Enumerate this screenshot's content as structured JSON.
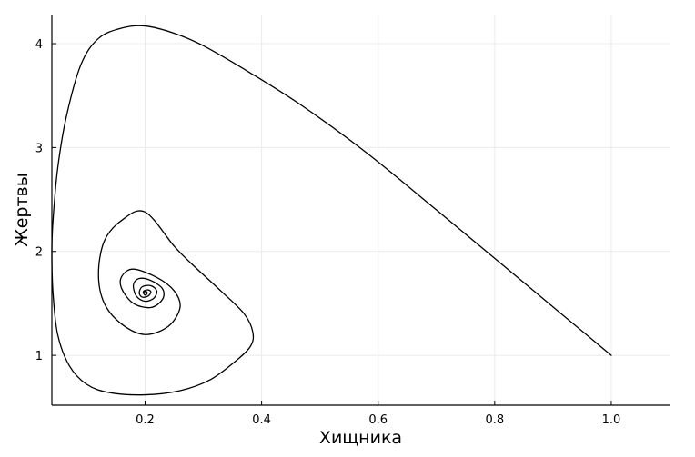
{
  "chart_data": {
    "type": "line",
    "xlabel": "Хищника",
    "ylabel": "Жертвы",
    "xlim": [
      0.04,
      1.1
    ],
    "ylim": [
      0.52,
      4.28
    ],
    "x_ticks": [
      0.2,
      0.4,
      0.6,
      0.8,
      1.0
    ],
    "x_tick_labels": [
      "0.2",
      "0.4",
      "0.6",
      "0.8",
      "1.0"
    ],
    "y_ticks": [
      1,
      2,
      3,
      4
    ],
    "y_tick_labels": [
      "1",
      "2",
      "3",
      "4"
    ],
    "grid": true,
    "legend": "none",
    "colors": {
      "line": "#000000",
      "grid": "#ebebeb",
      "axis": "#000000",
      "background": "#ffffff"
    },
    "series": [
      {
        "x": [
          1.0,
          0.85,
          0.7,
          0.58,
          0.47,
          0.38,
          0.3,
          0.25,
          0.2,
          0.16,
          0.12,
          0.09,
          0.065,
          0.05,
          0.042,
          0.04,
          0.042,
          0.05,
          0.07,
          0.1,
          0.14,
          0.2,
          0.26,
          0.31,
          0.35,
          0.38,
          0.385,
          0.37,
          0.33,
          0.28,
          0.25,
          0.2,
          0.16,
          0.13,
          0.12,
          0.13,
          0.16,
          0.2,
          0.24,
          0.26,
          0.25,
          0.22,
          0.18,
          0.16,
          0.16,
          0.18,
          0.21,
          0.23,
          0.23,
          0.21,
          0.19,
          0.18,
          0.185,
          0.2,
          0.215,
          0.22,
          0.21,
          0.195,
          0.19,
          0.195,
          0.205,
          0.21,
          0.205,
          0.198,
          0.197,
          0.2,
          0.203,
          0.203,
          0.2,
          0.199,
          0.2
        ],
        "y": [
          1.0,
          1.7,
          2.4,
          2.95,
          3.4,
          3.72,
          3.98,
          4.1,
          4.17,
          4.15,
          4.05,
          3.8,
          3.3,
          2.8,
          2.3,
          2.0,
          1.6,
          1.2,
          0.9,
          0.72,
          0.64,
          0.62,
          0.66,
          0.76,
          0.92,
          1.08,
          1.22,
          1.4,
          1.62,
          1.88,
          2.05,
          2.38,
          2.3,
          2.1,
          1.78,
          1.5,
          1.3,
          1.2,
          1.28,
          1.46,
          1.62,
          1.75,
          1.83,
          1.76,
          1.64,
          1.5,
          1.46,
          1.54,
          1.64,
          1.72,
          1.74,
          1.68,
          1.57,
          1.52,
          1.55,
          1.62,
          1.67,
          1.66,
          1.6,
          1.56,
          1.57,
          1.61,
          1.63,
          1.62,
          1.6,
          1.58,
          1.59,
          1.61,
          1.62,
          1.61,
          1.6
        ]
      }
    ]
  }
}
